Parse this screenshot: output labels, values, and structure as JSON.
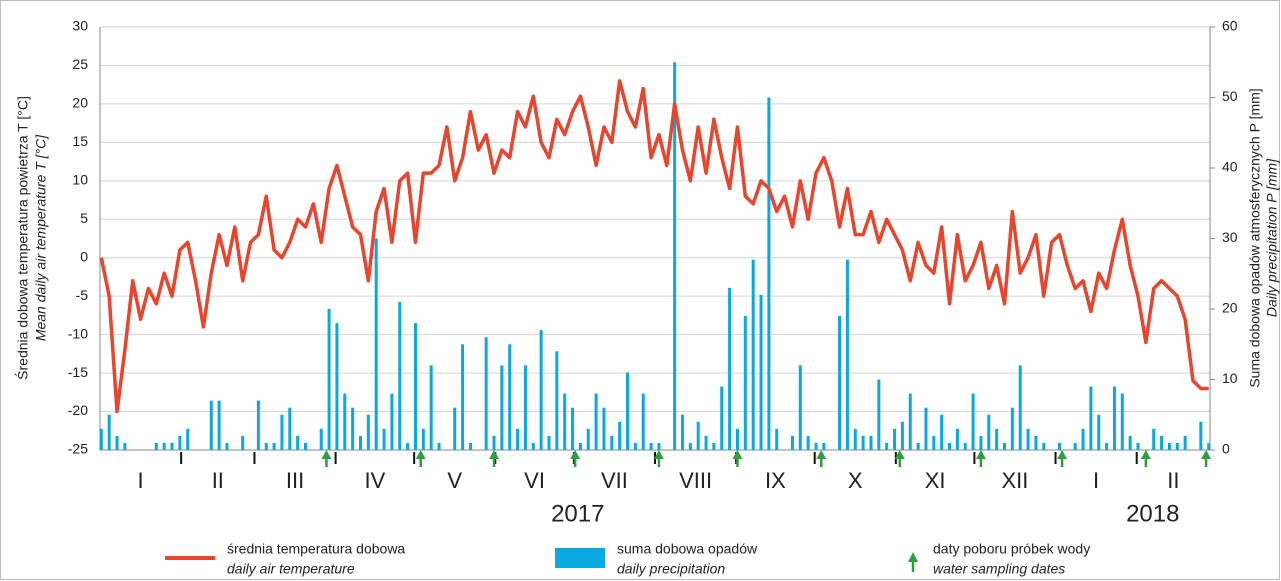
{
  "chart_data": {
    "type": "combo",
    "y_title": "Średnia dobowa temperatura powietrza T [°C]",
    "y_title_en": "Mean daily air temperature T [°C]",
    "y2_title": "Suma dobowa opadów atmosferycznych P [mm]",
    "y2_title_en": "Daily precipitation P [mm]",
    "categories": [
      "I",
      "II",
      "III",
      "IV",
      "V",
      "VI",
      "VII",
      "VIII",
      "IX",
      "X",
      "XI",
      "XII",
      "I",
      "II"
    ],
    "years": [
      "2017",
      "2018"
    ],
    "ylim": [
      -25,
      30
    ],
    "yticks": [
      -25,
      -20,
      -15,
      -10,
      -5,
      0,
      5,
      10,
      15,
      20,
      25,
      30
    ],
    "y2lim": [
      0,
      60
    ],
    "y2ticks": [
      0,
      10,
      20,
      30,
      40,
      50,
      60
    ],
    "grid": true,
    "x": [
      0,
      3,
      6,
      9,
      12,
      15,
      18,
      21,
      24,
      27,
      30,
      33,
      36,
      39,
      42,
      45,
      48,
      51,
      54,
      57,
      60,
      63,
      66,
      69,
      72,
      75,
      78,
      81,
      84,
      87,
      90,
      93,
      96,
      99,
      102,
      105,
      108,
      111,
      114,
      117,
      120,
      123,
      126,
      129,
      132,
      135,
      138,
      141,
      144,
      147,
      150,
      153,
      156,
      159,
      162,
      165,
      168,
      171,
      174,
      177,
      180,
      183,
      186,
      189,
      192,
      195,
      198,
      201,
      204,
      207,
      210,
      213,
      216,
      219,
      222,
      225,
      228,
      231,
      234,
      237,
      240,
      243,
      246,
      249,
      252,
      255,
      258,
      261,
      264,
      267,
      270,
      273,
      276,
      279,
      282,
      285,
      288,
      291,
      294,
      297,
      300,
      303,
      306,
      309,
      312,
      315,
      318,
      321,
      324,
      327,
      330,
      333,
      336,
      339,
      342,
      345,
      348,
      351,
      354,
      357,
      360,
      363,
      366,
      369,
      372,
      375,
      378,
      381,
      384,
      387,
      390,
      393,
      396,
      399,
      402,
      405,
      408,
      411,
      414,
      417,
      420,
      423
    ],
    "series": [
      {
        "name": "średnia temperatura dobowa",
        "name_en": "daily air temperature",
        "color": "#e8452c",
        "values": [
          0,
          -5,
          -20,
          -12,
          -3,
          -8,
          -4,
          -6,
          -2,
          -5,
          1,
          2,
          -3,
          -9,
          -2,
          3,
          -1,
          4,
          -3,
          2,
          3,
          8,
          1,
          0,
          2,
          5,
          4,
          7,
          2,
          9,
          12,
          8,
          4,
          3,
          -3,
          6,
          9,
          2,
          10,
          11,
          2,
          11,
          11,
          12,
          17,
          10,
          13,
          19,
          14,
          16,
          11,
          14,
          13,
          19,
          17,
          21,
          15,
          13,
          18,
          16,
          19,
          21,
          17,
          12,
          17,
          15,
          23,
          19,
          17,
          22,
          13,
          16,
          12,
          20,
          14,
          10,
          17,
          11,
          18,
          13,
          9,
          17,
          8,
          7,
          10,
          9,
          6,
          8,
          4,
          10,
          5,
          11,
          13,
          10,
          4,
          9,
          3,
          3,
          6,
          2,
          5,
          3,
          1,
          -3,
          2,
          -1,
          -2,
          4,
          -6,
          3,
          -3,
          -1,
          2,
          -4,
          -1,
          -6,
          6,
          -2,
          0,
          3,
          -5,
          2,
          3,
          -1,
          -4,
          -3,
          -7,
          -2,
          -4,
          1,
          5,
          -1,
          -5,
          -11,
          -4,
          -3,
          -4,
          -5,
          -8,
          -16,
          -17,
          -17
        ]
      },
      {
        "name": "suma dobowa opadów",
        "name_en": "daily precipitation",
        "color": "#0aa8e0",
        "axis": "y2",
        "values": [
          3,
          5,
          2,
          1,
          0,
          0,
          0,
          1,
          1,
          1,
          2,
          3,
          0,
          0,
          7,
          7,
          1,
          0,
          2,
          0,
          7,
          1,
          1,
          5,
          6,
          2,
          1,
          0,
          3,
          20,
          18,
          8,
          6,
          2,
          5,
          30,
          3,
          8,
          21,
          1,
          18,
          3,
          12,
          1,
          0,
          6,
          15,
          1,
          0,
          16,
          2,
          12,
          15,
          3,
          12,
          1,
          17,
          2,
          14,
          8,
          6,
          1,
          3,
          8,
          6,
          2,
          4,
          11,
          1,
          8,
          1,
          1,
          0,
          55,
          5,
          1,
          4,
          2,
          1,
          9,
          23,
          3,
          19,
          27,
          22,
          50,
          3,
          0,
          2,
          12,
          2,
          1,
          1,
          0,
          19,
          27,
          3,
          2,
          2,
          10,
          1,
          3,
          4,
          8,
          1,
          6,
          2,
          5,
          1,
          3,
          1,
          8,
          2,
          5,
          3,
          1,
          6,
          12,
          3,
          2,
          1,
          0,
          1,
          0,
          1,
          3,
          9,
          5,
          1,
          9,
          8,
          2,
          1,
          0,
          3,
          2,
          1,
          1,
          2,
          0,
          4,
          1
        ]
      },
      {
        "name": "daty poboru próbek wody",
        "name_en": "water sampling dates",
        "color": "#2e9e3e",
        "x": [
          86,
          122,
          150,
          181,
          213,
          243,
          275,
          305,
          336,
          367,
          399,
          422
        ]
      }
    ]
  }
}
